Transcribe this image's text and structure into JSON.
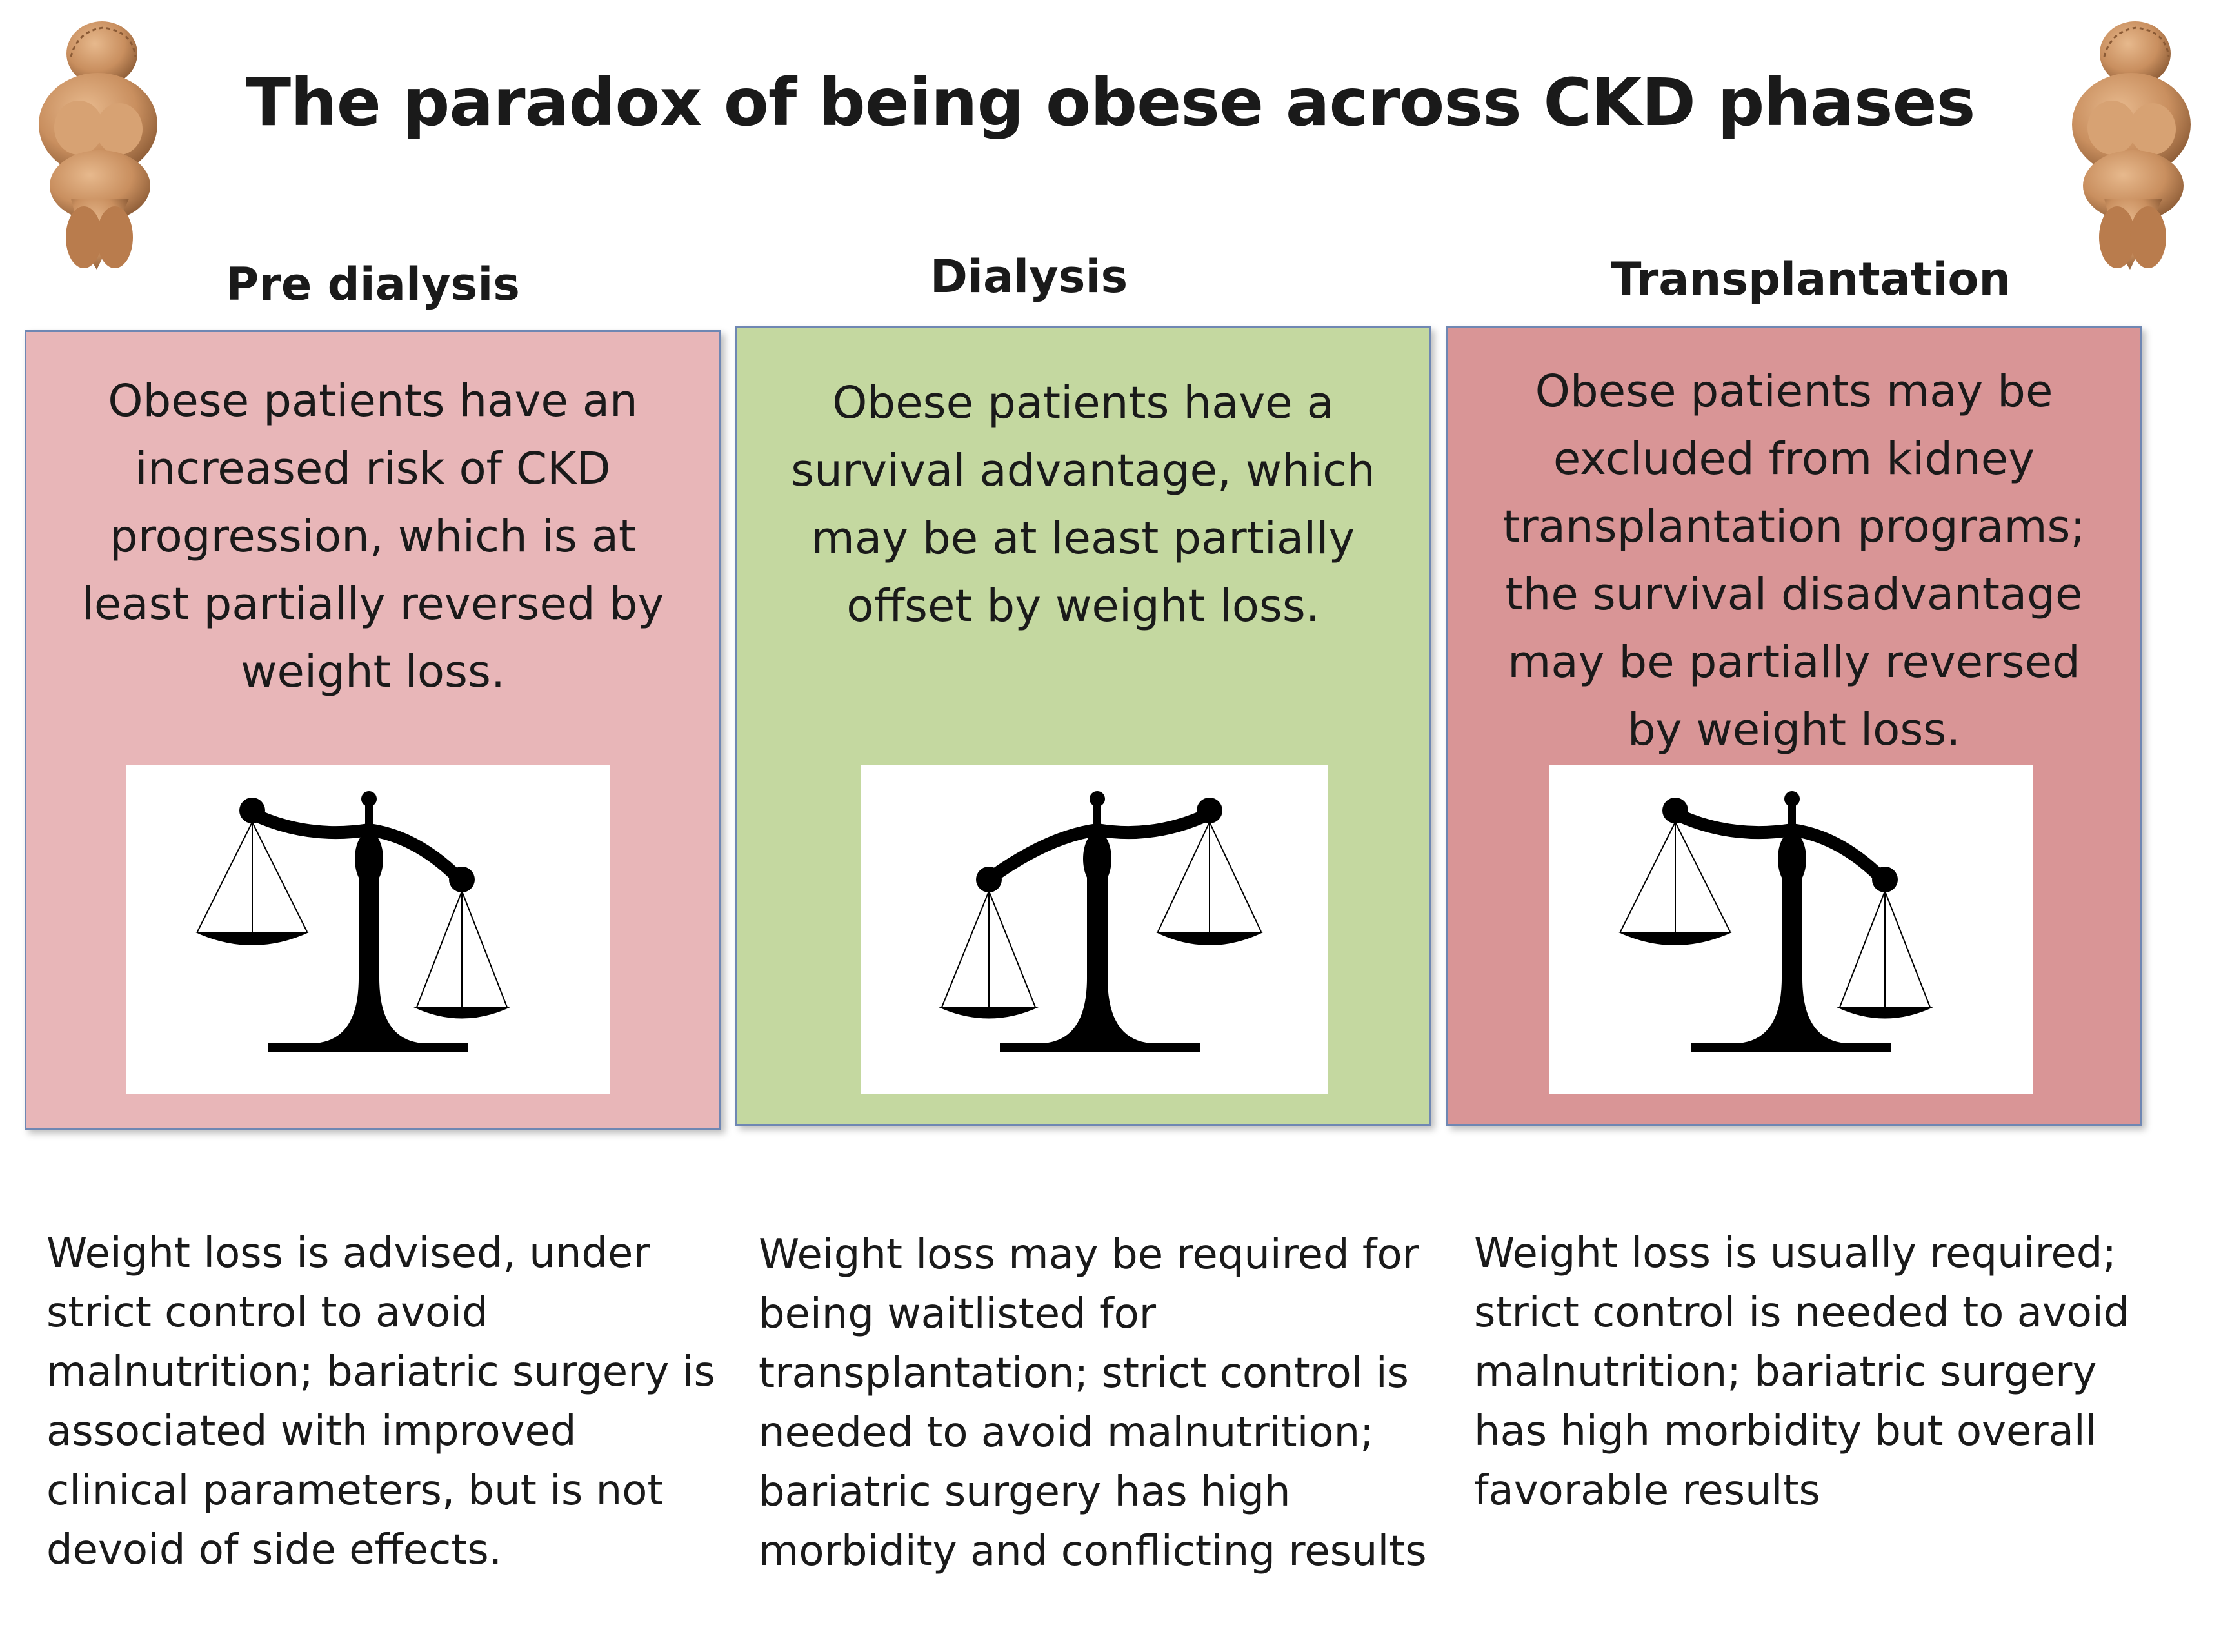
{
  "title": "The paradox of being obese across CKD phases",
  "colors": {
    "pre_dialysis_panel": "#e8b6b8",
    "dialysis_panel": "#c4d8a0",
    "transplantation_panel": "#d99596",
    "panel_border": "#6f87b3",
    "figurine": "#c98f5f"
  },
  "phases": [
    {
      "heading": "Pre dialysis",
      "panel_text": "Obese patients have an increased risk of CKD progression, which is at least partially reversed by weight loss.",
      "scale_icon": "balance-scale-icon",
      "note": "Weight loss is advised, under strict control to avoid malnutrition; bariatric surgery is associated with improved clinical parameters, but is not devoid of side effects."
    },
    {
      "heading": "Dialysis",
      "panel_text": "Obese patients have a survival advantage, which may be at least partially offset by weight loss.",
      "scale_icon": "balance-scale-icon",
      "note": "Weight loss may be required for being waitlisted for transplantation; strict control is needed to avoid malnutrition; bariatric surgery has high morbidity and conflicting results"
    },
    {
      "heading": "Transplantation",
      "panel_text": "Obese patients may be excluded from kidney transplantation programs; the survival disadvantage may be partially reversed by weight loss.",
      "scale_icon": "balance-scale-icon",
      "note": "Weight loss is usually required; strict control is needed to avoid malnutrition; bariatric surgery has high morbidity but overall favorable results"
    }
  ]
}
